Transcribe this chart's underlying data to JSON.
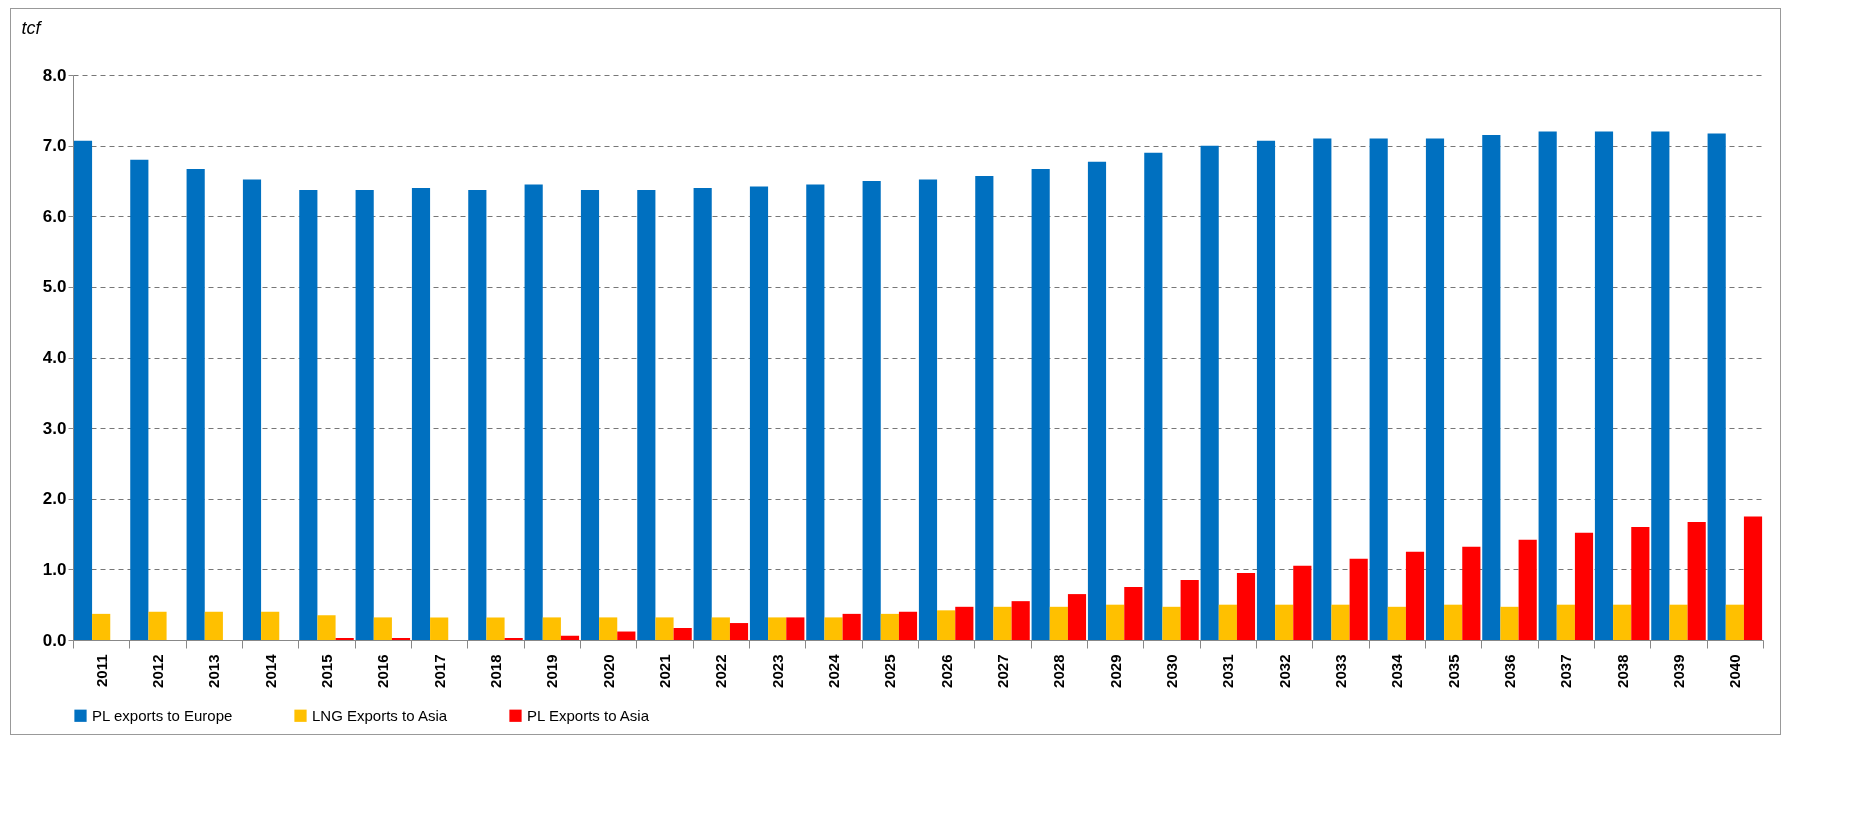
{
  "chart_data": {
    "type": "bar",
    "ylabel": "tcf",
    "categories": [
      "2011",
      "2012",
      "2013",
      "2014",
      "2015",
      "2016",
      "2017",
      "2018",
      "2019",
      "2020",
      "2021",
      "2022",
      "2023",
      "2024",
      "2025",
      "2026",
      "2027",
      "2028",
      "2029",
      "2030",
      "2031",
      "2032",
      "2033",
      "2034",
      "2035",
      "2036",
      "2037",
      "2038",
      "2039",
      "2040"
    ],
    "series": [
      {
        "name": "PL exports to Europe",
        "color": "#0070c0",
        "values": [
          7.07,
          6.8,
          6.67,
          6.52,
          6.37,
          6.37,
          6.4,
          6.37,
          6.45,
          6.37,
          6.37,
          6.4,
          6.42,
          6.45,
          6.5,
          6.52,
          6.57,
          6.67,
          6.77,
          6.9,
          7.0,
          7.07,
          7.1,
          7.1,
          7.1,
          7.15,
          7.2,
          7.2,
          7.2,
          7.17
        ]
      },
      {
        "name": "LNG Exports to Asia",
        "color": "#ffc000",
        "values": [
          0.37,
          0.4,
          0.4,
          0.4,
          0.35,
          0.32,
          0.32,
          0.32,
          0.32,
          0.32,
          0.32,
          0.32,
          0.32,
          0.32,
          0.37,
          0.42,
          0.47,
          0.47,
          0.5,
          0.47,
          0.5,
          0.5,
          0.5,
          0.47,
          0.5,
          0.47,
          0.5,
          0.5,
          0.5,
          0.5
        ]
      },
      {
        "name": "PL Exports to Asia",
        "color": "#ff0000",
        "values": [
          0,
          0,
          0,
          0,
          0.03,
          0.03,
          0,
          0.03,
          0.06,
          0.12,
          0.17,
          0.24,
          0.32,
          0.37,
          0.4,
          0.47,
          0.55,
          0.65,
          0.75,
          0.85,
          0.95,
          1.05,
          1.15,
          1.25,
          1.32,
          1.42,
          1.52,
          1.6,
          1.67,
          1.75
        ]
      }
    ],
    "ylim": [
      0,
      8
    ],
    "yticks": [
      {
        "value": 0,
        "label": "0.0"
      },
      {
        "value": 1,
        "label": "1.0"
      },
      {
        "value": 2,
        "label": "2.0"
      },
      {
        "value": 3,
        "label": "3.0"
      },
      {
        "value": 4,
        "label": "4.0"
      },
      {
        "value": 5,
        "label": "5.0"
      },
      {
        "value": 6,
        "label": "6.0"
      },
      {
        "value": 7,
        "label": "7.0"
      },
      {
        "value": 8,
        "label": "8.0"
      }
    ],
    "grid": "y",
    "legend": "bottom"
  }
}
